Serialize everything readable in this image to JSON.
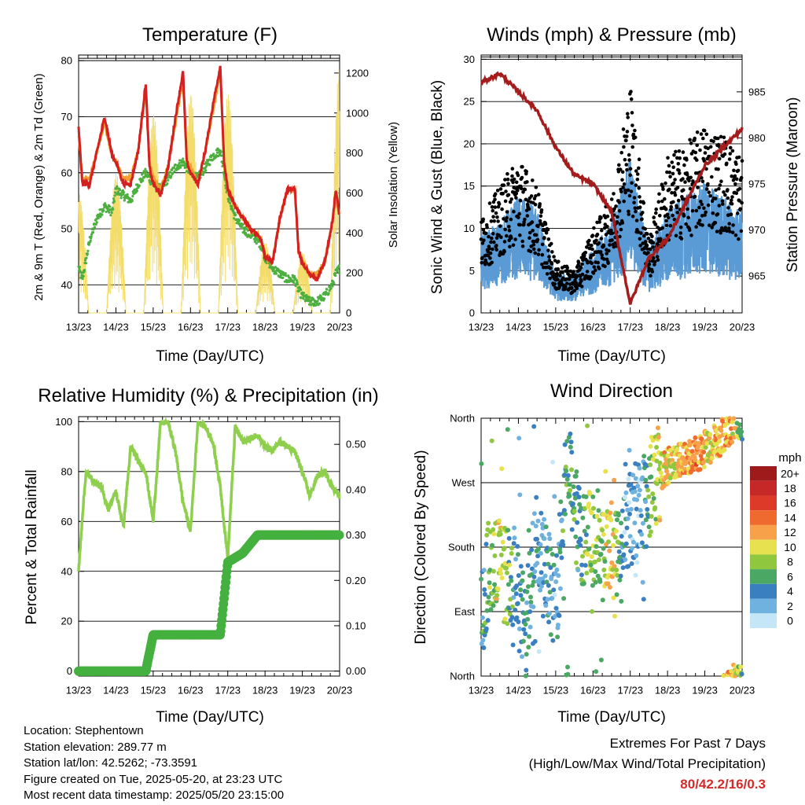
{
  "xaxis": {
    "ticks": [
      "13/23",
      "14/23",
      "15/23",
      "16/23",
      "17/23",
      "18/23",
      "19/23",
      "20/23"
    ],
    "label": "Time (Day/UTC)"
  },
  "panels": {
    "temperature": {
      "title": "Temperature (F)",
      "ylabel_left": "2m & 9m T (Red, Orange) & 2m Td (Green)",
      "ylabel_right": "Solar Insolation (Yellow)",
      "yticks_left": [
        "40",
        "50",
        "60",
        "70",
        "80"
      ],
      "yticks_right": [
        "0",
        "200",
        "400",
        "600",
        "800",
        "1000",
        "1200"
      ]
    },
    "winds": {
      "title": "Winds (mph) & Pressure (mb)",
      "ylabel_left": "Sonic Wind & Gust (Blue, Black)",
      "ylabel_right": "Station Pressure (Maroon)",
      "yticks_left": [
        "0",
        "5",
        "10",
        "15",
        "20",
        "25",
        "30"
      ],
      "yticks_right": [
        "965",
        "970",
        "975",
        "980",
        "985"
      ]
    },
    "humidity": {
      "title": "Relative Humidity (%) & Precipitation (in)",
      "ylabel_left": "Percent & Total Rainfall",
      "yticks_left": [
        "0",
        "20",
        "40",
        "60",
        "80",
        "100"
      ],
      "yticks_right": [
        "0.00",
        "0.10",
        "0.20",
        "0.30",
        "0.40",
        "0.50"
      ]
    },
    "direction": {
      "title": "Wind Direction",
      "ylabel_left": "Direction (Colored By Speed)",
      "yticks_left": [
        "North",
        "East",
        "South",
        "West",
        "North"
      ],
      "colorbar_title": "mph",
      "colorbar_labels": [
        "20+",
        "18",
        "16",
        "14",
        "12",
        "10",
        "8",
        "6",
        "4",
        "2",
        "0"
      ],
      "colorbar_colors": [
        "#9e1b1b",
        "#c62828",
        "#dd3a2a",
        "#ee6a2e",
        "#f7a24a",
        "#e8e14e",
        "#8fc83f",
        "#4aa864",
        "#3a7fbf",
        "#6fb2e0",
        "#c4e6f7"
      ]
    }
  },
  "chart_data": [
    {
      "type": "line",
      "title": "Temperature (F)",
      "xlabel": "Time (Day/UTC)",
      "ylabel": "2m & 9m T (Red, Orange) & 2m Td (Green)",
      "ylabel_right": "Solar Insolation (Yellow)",
      "ylim": [
        35,
        81
      ],
      "ylim_right": [
        0,
        1290
      ],
      "x": [
        13.0,
        13.1,
        13.3,
        13.5,
        13.7,
        13.9,
        14.0,
        14.2,
        14.4,
        14.6,
        14.8,
        14.9,
        15.0,
        15.2,
        15.4,
        15.6,
        15.8,
        15.9,
        16.0,
        16.2,
        16.4,
        16.6,
        16.8,
        16.9,
        17.0,
        17.2,
        17.4,
        17.6,
        17.8,
        17.9,
        18.0,
        18.2,
        18.4,
        18.6,
        18.8,
        18.9,
        19.0,
        19.2,
        19.4,
        19.6,
        19.8,
        19.9,
        20.0
      ],
      "series": [
        {
          "name": "2m T",
          "color": "#d42020",
          "values": [
            68,
            58,
            58,
            64,
            70,
            63,
            62,
            58,
            58,
            64,
            76,
            61,
            58,
            56,
            61,
            70,
            78,
            62,
            60,
            58,
            64,
            72,
            79,
            62,
            57,
            54,
            52,
            50,
            49,
            48,
            45,
            44,
            52,
            57,
            57,
            46,
            44,
            42,
            41,
            44,
            51,
            57,
            52
          ]
        },
        {
          "name": "9m T",
          "color": "#f0a030",
          "values": [
            67,
            59,
            59,
            64,
            69,
            63,
            62,
            59,
            59,
            64,
            75,
            62,
            59,
            57,
            61,
            69,
            77,
            62,
            61,
            58,
            64,
            71,
            78,
            62,
            57,
            54,
            52,
            50,
            49,
            48,
            45,
            44,
            52,
            57,
            57,
            46,
            44,
            42,
            42,
            44,
            51,
            56,
            52
          ]
        },
        {
          "name": "2m Td",
          "color": "#4caf3f",
          "values": [
            43,
            41,
            48,
            52,
            54,
            53,
            57,
            56,
            55,
            58,
            60,
            59,
            58,
            57,
            59,
            61,
            62,
            61,
            60,
            59,
            61,
            63,
            64,
            60,
            56,
            52,
            50,
            49,
            48,
            47,
            45,
            43,
            42,
            41,
            41,
            39,
            38,
            37,
            37,
            38,
            40,
            42,
            43
          ]
        }
      ],
      "solar": {
        "name": "Solar Insolation",
        "color": "#f3dc6a",
        "days": [
          13,
          14,
          15,
          16,
          17,
          18,
          19,
          20
        ],
        "peaks": [
          600,
          700,
          1000,
          1100,
          1100,
          350,
          300,
          1250
        ]
      }
    },
    {
      "type": "scatter",
      "title": "Winds (mph) & Pressure (mb)",
      "xlabel": "Time (Day/UTC)",
      "ylabel": "Sonic Wind & Gust (Blue, Black)",
      "ylabel_right": "Station Pressure (Maroon)",
      "ylim": [
        0,
        30.5
      ],
      "ylim_right": [
        961,
        989
      ],
      "x": [
        13.0,
        13.5,
        14.0,
        14.5,
        15.0,
        15.5,
        16.0,
        16.5,
        17.0,
        17.5,
        18.0,
        18.5,
        19.0,
        19.5,
        20.0
      ],
      "series": [
        {
          "name": "Sonic Wind",
          "color": "#5b9bd5",
          "values": [
            6,
            7,
            9,
            8,
            3,
            3,
            5,
            7,
            12,
            5,
            8,
            9,
            10,
            9,
            8
          ]
        },
        {
          "name": "Gust",
          "color": "#000000",
          "values": [
            9,
            12,
            15,
            12,
            5,
            4,
            8,
            11,
            22,
            7,
            15,
            16,
            18,
            17,
            15
          ]
        },
        {
          "name": "Station Pressure",
          "color": "#a51c1c",
          "axis": "right",
          "values": [
            986,
            987,
            985,
            983,
            979,
            976,
            975,
            972,
            962,
            967,
            969,
            973,
            977,
            979,
            981
          ]
        }
      ]
    },
    {
      "type": "line",
      "title": "Relative Humidity (%) & Precipitation (in)",
      "xlabel": "Time (Day/UTC)",
      "ylabel": "Percent & Total Rainfall",
      "ylim": [
        -2,
        102
      ],
      "ylim_right": [
        -0.011,
        0.561
      ],
      "x": [
        13.0,
        13.1,
        13.2,
        13.4,
        13.6,
        13.8,
        14.0,
        14.2,
        14.4,
        14.6,
        14.8,
        15.0,
        15.2,
        15.4,
        15.6,
        15.8,
        16.0,
        16.2,
        16.4,
        16.6,
        16.8,
        17.0,
        17.2,
        17.4,
        17.6,
        17.8,
        18.0,
        18.2,
        18.4,
        18.6,
        18.8,
        19.0,
        19.2,
        19.4,
        19.6,
        19.8,
        20.0
      ],
      "series": [
        {
          "name": "Relative Humidity",
          "color": "#8fcf4e",
          "values": [
            40,
            62,
            80,
            76,
            74,
            65,
            72,
            58,
            90,
            84,
            80,
            60,
            100,
            100,
            88,
            68,
            56,
            100,
            98,
            92,
            74,
            45,
            98,
            92,
            93,
            95,
            90,
            88,
            92,
            90,
            88,
            80,
            70,
            78,
            80,
            74,
            70
          ]
        },
        {
          "name": "Total Rainfall",
          "color": "#44b03f",
          "axis": "right",
          "values": [
            0,
            0,
            0,
            0,
            0,
            0,
            0,
            0,
            0,
            0,
            0,
            0.08,
            0.08,
            0.08,
            0.08,
            0.08,
            0.08,
            0.08,
            0.08,
            0.08,
            0.08,
            0.24,
            0.25,
            0.26,
            0.28,
            0.3,
            0.3,
            0.3,
            0.3,
            0.3,
            0.3,
            0.3,
            0.3,
            0.3,
            0.3,
            0.3,
            0.3
          ]
        }
      ]
    },
    {
      "type": "scatter",
      "title": "Wind Direction",
      "xlabel": "Time (Day/UTC)",
      "ylabel": "Direction (Colored By Speed)",
      "ylim": [
        0,
        360
      ],
      "x": [
        13.0,
        13.3,
        13.6,
        13.9,
        14.2,
        14.5,
        14.8,
        15.0,
        15.3,
        15.6,
        15.9,
        16.2,
        16.5,
        16.8,
        17.0,
        17.3,
        17.6,
        17.9,
        18.2,
        18.5,
        18.8,
        19.1,
        19.4,
        19.7,
        20.0
      ],
      "series": [
        {
          "name": "Direction",
          "values": [
            100,
            170,
            140,
            130,
            60,
            200,
            150,
            80,
            330,
            200,
            190,
            180,
            160,
            170,
            220,
            230,
            270,
            290,
            300,
            300,
            310,
            320,
            330,
            350,
            355
          ]
        },
        {
          "name": "Speed",
          "values": [
            4,
            8,
            10,
            4,
            5,
            3,
            4,
            3,
            6,
            5,
            8,
            7,
            12,
            3,
            3,
            2,
            8,
            11,
            10,
            12,
            13,
            10,
            12,
            12,
            6
          ]
        }
      ]
    }
  ],
  "info": {
    "location": "Location: Stephentown",
    "elevation": "Station elevation: 289.77 m",
    "latlon": "Station lat/lon: 42.5262; -73.3591",
    "created": "Figure created on Tue, 2025-05-20, at 23:23 UTC",
    "recent": "Most recent data timestamp: 2025/05/20 23:15:00"
  },
  "extremes": {
    "line1": "Extremes For Past 7 Days",
    "line2": "(High/Low/Max Wind/Total Precipitation)",
    "values": "80/42.2/16/0.3"
  }
}
